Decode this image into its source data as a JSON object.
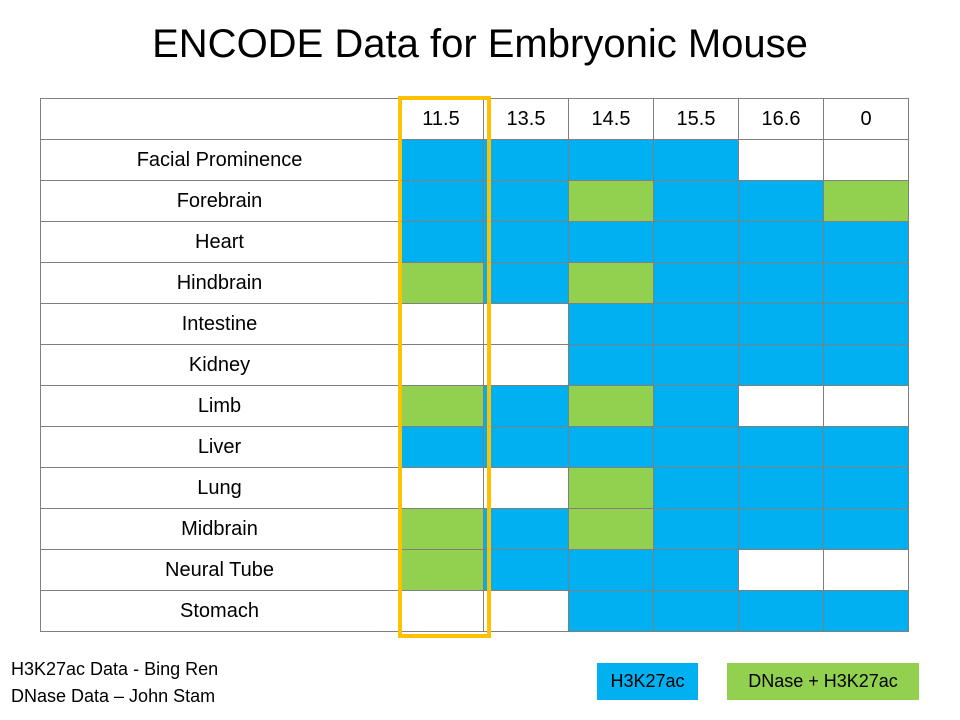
{
  "title": "ENCODE Data for Embryonic Mouse",
  "columns": [
    "11.5",
    "13.5",
    "14.5",
    "15.5",
    "16.6",
    "0"
  ],
  "status_colors": {
    "h3k27ac": "#00b0f0",
    "both": "#92d050",
    "none": "#ffffff",
    "highlight": "#ffc000"
  },
  "highlighted_column": "11.5",
  "rows": [
    {
      "label": "Facial Prominence",
      "cells": [
        "h3k27ac",
        "h3k27ac",
        "h3k27ac",
        "h3k27ac",
        "none",
        "none"
      ]
    },
    {
      "label": "Forebrain",
      "cells": [
        "h3k27ac",
        "h3k27ac",
        "both",
        "h3k27ac",
        "h3k27ac",
        "both"
      ]
    },
    {
      "label": "Heart",
      "cells": [
        "h3k27ac",
        "h3k27ac",
        "h3k27ac",
        "h3k27ac",
        "h3k27ac",
        "h3k27ac"
      ]
    },
    {
      "label": "Hindbrain",
      "cells": [
        "both",
        "h3k27ac",
        "both",
        "h3k27ac",
        "h3k27ac",
        "h3k27ac"
      ]
    },
    {
      "label": "Intestine",
      "cells": [
        "none",
        "none",
        "h3k27ac",
        "h3k27ac",
        "h3k27ac",
        "h3k27ac"
      ]
    },
    {
      "label": "Kidney",
      "cells": [
        "none",
        "none",
        "h3k27ac",
        "h3k27ac",
        "h3k27ac",
        "h3k27ac"
      ]
    },
    {
      "label": "Limb",
      "cells": [
        "both",
        "h3k27ac",
        "both",
        "h3k27ac",
        "none",
        "none"
      ]
    },
    {
      "label": "Liver",
      "cells": [
        "h3k27ac",
        "h3k27ac",
        "h3k27ac",
        "h3k27ac",
        "h3k27ac",
        "h3k27ac"
      ]
    },
    {
      "label": "Lung",
      "cells": [
        "none",
        "none",
        "both",
        "h3k27ac",
        "h3k27ac",
        "h3k27ac"
      ]
    },
    {
      "label": "Midbrain",
      "cells": [
        "both",
        "h3k27ac",
        "both",
        "h3k27ac",
        "h3k27ac",
        "h3k27ac"
      ]
    },
    {
      "label": "Neural Tube",
      "cells": [
        "both",
        "h3k27ac",
        "h3k27ac",
        "h3k27ac",
        "none",
        "none"
      ]
    },
    {
      "label": "Stomach",
      "cells": [
        "none",
        "none",
        "h3k27ac",
        "h3k27ac",
        "h3k27ac",
        "h3k27ac"
      ]
    }
  ],
  "credits": {
    "line1": "H3K27ac Data - Bing Ren",
    "line2": "DNase Data – John Stam"
  },
  "legend": {
    "h3k27ac_label": "H3K27ac",
    "both_label": "DNase + H3K27ac"
  }
}
